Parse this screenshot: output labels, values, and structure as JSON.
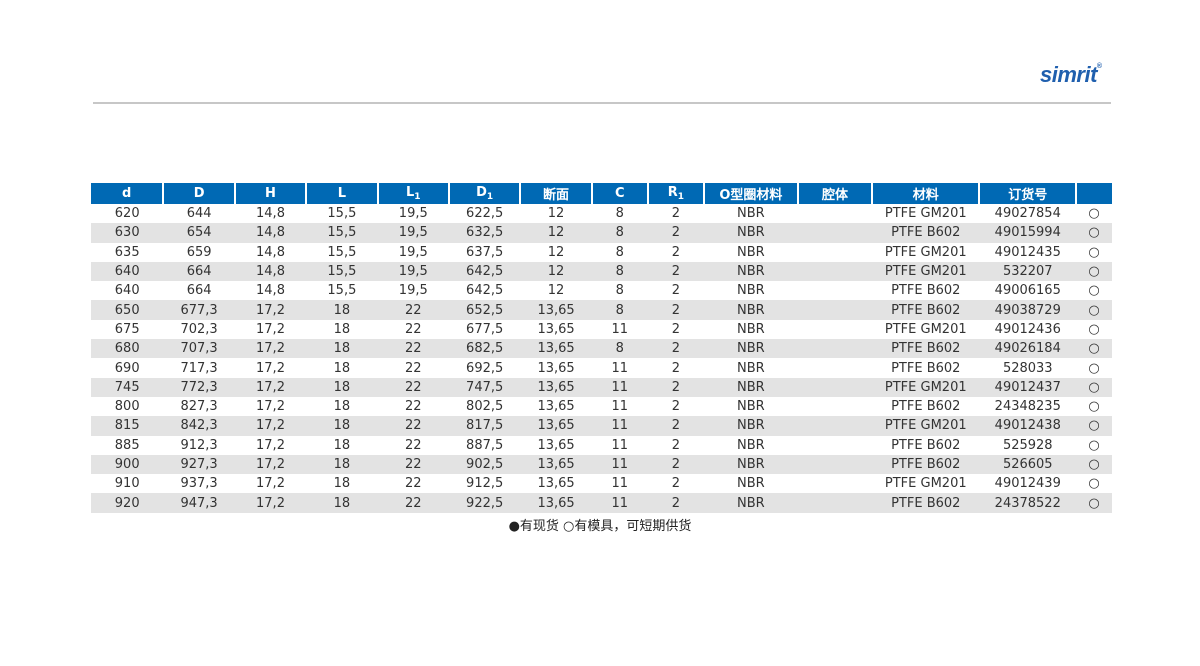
{
  "brand": {
    "logo_text": "simrit",
    "logo_mark": "®",
    "color": "#1f5fae"
  },
  "table": {
    "header_color": "#0069b4",
    "headers": [
      "d",
      "D",
      "H",
      "L",
      "L",
      "D",
      "断面",
      "C",
      "R",
      "O型圈材料",
      "腔体",
      "材料",
      "订货号",
      ""
    ],
    "header_subscripts": [
      "",
      "",
      "",
      "",
      "1",
      "1",
      "",
      "",
      "1",
      "",
      "",
      "",
      "",
      ""
    ],
    "rows": [
      [
        "620",
        "644",
        "14,8",
        "15,5",
        "19,5",
        "622,5",
        "12",
        "8",
        "2",
        "NBR",
        "",
        "PTFE GM201",
        "49027854",
        "○"
      ],
      [
        "630",
        "654",
        "14,8",
        "15,5",
        "19,5",
        "632,5",
        "12",
        "8",
        "2",
        "NBR",
        "",
        "PTFE B602",
        "49015994",
        "○"
      ],
      [
        "635",
        "659",
        "14,8",
        "15,5",
        "19,5",
        "637,5",
        "12",
        "8",
        "2",
        "NBR",
        "",
        "PTFE GM201",
        "49012435",
        "○"
      ],
      [
        "640",
        "664",
        "14,8",
        "15,5",
        "19,5",
        "642,5",
        "12",
        "8",
        "2",
        "NBR",
        "",
        "PTFE GM201",
        "532207",
        "○"
      ],
      [
        "640",
        "664",
        "14,8",
        "15,5",
        "19,5",
        "642,5",
        "12",
        "8",
        "2",
        "NBR",
        "",
        "PTFE B602",
        "49006165",
        "○"
      ],
      [
        "650",
        "677,3",
        "17,2",
        "18",
        "22",
        "652,5",
        "13,65",
        "8",
        "2",
        "NBR",
        "",
        "PTFE B602",
        "49038729",
        "○"
      ],
      [
        "675",
        "702,3",
        "17,2",
        "18",
        "22",
        "677,5",
        "13,65",
        "11",
        "2",
        "NBR",
        "",
        "PTFE GM201",
        "49012436",
        "○"
      ],
      [
        "680",
        "707,3",
        "17,2",
        "18",
        "22",
        "682,5",
        "13,65",
        "8",
        "2",
        "NBR",
        "",
        "PTFE B602",
        "49026184",
        "○"
      ],
      [
        "690",
        "717,3",
        "17,2",
        "18",
        "22",
        "692,5",
        "13,65",
        "11",
        "2",
        "NBR",
        "",
        "PTFE B602",
        "528033",
        "○"
      ],
      [
        "745",
        "772,3",
        "17,2",
        "18",
        "22",
        "747,5",
        "13,65",
        "11",
        "2",
        "NBR",
        "",
        "PTFE GM201",
        "49012437",
        "○"
      ],
      [
        "800",
        "827,3",
        "17,2",
        "18",
        "22",
        "802,5",
        "13,65",
        "11",
        "2",
        "NBR",
        "",
        "PTFE B602",
        "24348235",
        "○"
      ],
      [
        "815",
        "842,3",
        "17,2",
        "18",
        "22",
        "817,5",
        "13,65",
        "11",
        "2",
        "NBR",
        "",
        "PTFE GM201",
        "49012438",
        "○"
      ],
      [
        "885",
        "912,3",
        "17,2",
        "18",
        "22",
        "887,5",
        "13,65",
        "11",
        "2",
        "NBR",
        "",
        "PTFE B602",
        "525928",
        "○"
      ],
      [
        "900",
        "927,3",
        "17,2",
        "18",
        "22",
        "902,5",
        "13,65",
        "11",
        "2",
        "NBR",
        "",
        "PTFE B602",
        "526605",
        "○"
      ],
      [
        "910",
        "937,3",
        "17,2",
        "18",
        "22",
        "912,5",
        "13,65",
        "11",
        "2",
        "NBR",
        "",
        "PTFE GM201",
        "49012439",
        "○"
      ],
      [
        "920",
        "947,3",
        "17,2",
        "18",
        "22",
        "922,5",
        "13,65",
        "11",
        "2",
        "NBR",
        "",
        "PTFE B602",
        "24378522",
        "○"
      ]
    ]
  },
  "footnote": "●有现货 ○有模具，可短期供货"
}
